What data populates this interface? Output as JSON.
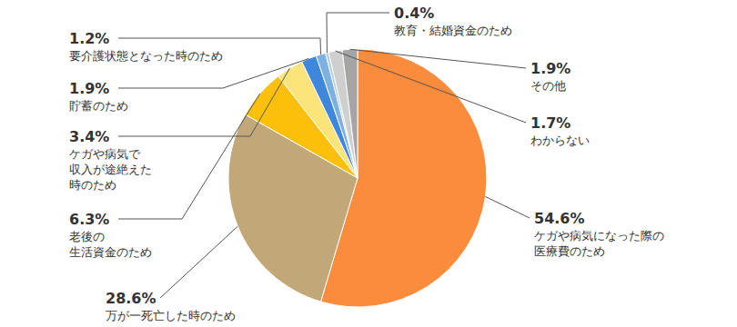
{
  "chart_data": {
    "type": "pie",
    "categories": [
      "ケガや病気になった際の\n医療費のため",
      "万が一死亡した時のため",
      "老後の\n生活資金のため",
      "ケガや病気で\n収入が途絶えた\n時のため",
      "貯蓄のため",
      "要介護状態となった時のため",
      "教育・結婚資金のため",
      "わからない",
      "その他"
    ],
    "values": [
      54.6,
      28.6,
      6.3,
      3.4,
      1.9,
      1.2,
      0.4,
      1.7,
      1.9
    ],
    "value_labels": [
      "54.6%",
      "28.6%",
      "6.3%",
      "3.4%",
      "1.9%",
      "1.2%",
      "0.4%",
      "1.7%",
      "1.9%"
    ],
    "colors": [
      "#fb8c3c",
      "#c2a878",
      "#fcbf0a",
      "#fbe47a",
      "#3f87dc",
      "#7fb0e2",
      "#b5cde6",
      "#cfcfcf",
      "#a5a5a5"
    ]
  }
}
